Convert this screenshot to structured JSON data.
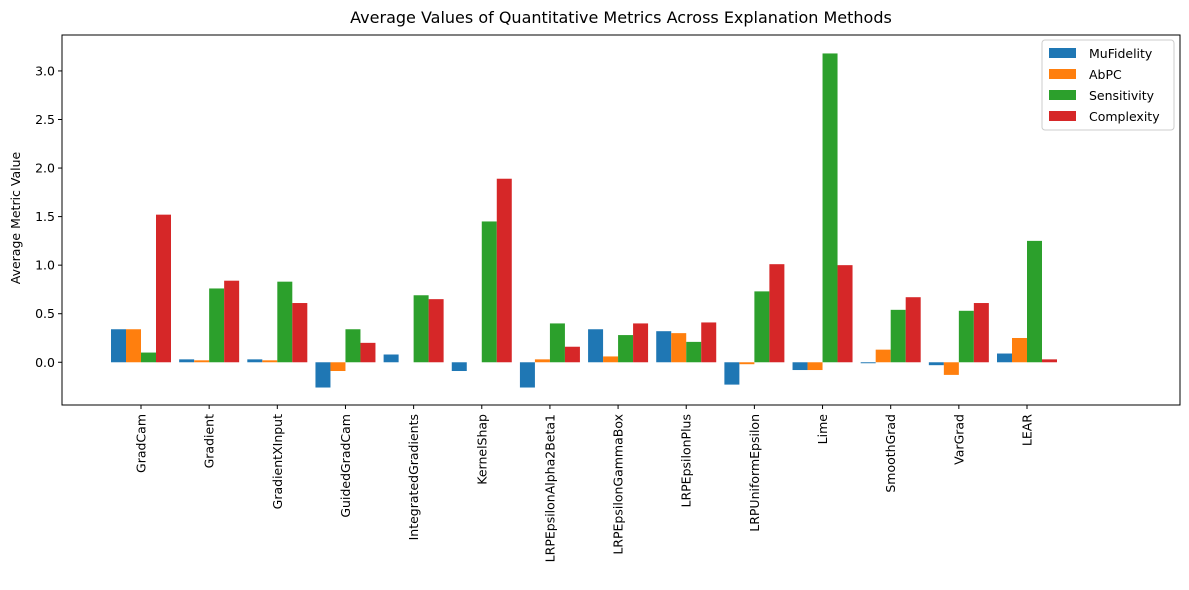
{
  "chart_data": {
    "type": "bar",
    "title": "Average Values of Quantitative Metrics Across Explanation Methods",
    "xlabel": "",
    "ylabel": "Average Metric Value",
    "ylim": [
      -0.44,
      3.37
    ],
    "yticks": [
      0.0,
      0.5,
      1.0,
      1.5,
      2.0,
      2.5,
      3.0
    ],
    "ytick_labels": [
      "0.0",
      "0.5",
      "1.0",
      "1.5",
      "2.0",
      "2.5",
      "3.0"
    ],
    "grid": false,
    "legend_position": "top-right",
    "categories": [
      "GradCam",
      "Gradient",
      "GradientXInput",
      "GuidedGradCam",
      "IntegratedGradients",
      "KernelShap",
      "LRPEpsilonAlpha2Beta1",
      "LRPEpsilonGammaBox",
      "LRPEpsilonPlus",
      "LRPUniformEpsilon",
      "Lime",
      "SmoothGrad",
      "VarGrad",
      "LEAR"
    ],
    "series": [
      {
        "name": "MuFidelity",
        "color": "#1f77b4",
        "values": [
          0.34,
          0.03,
          0.03,
          -0.26,
          0.08,
          -0.09,
          -0.26,
          0.34,
          0.32,
          -0.23,
          -0.08,
          -0.01,
          -0.03,
          0.09
        ]
      },
      {
        "name": "AbPC",
        "color": "#ff7f0e",
        "values": [
          0.34,
          0.02,
          0.02,
          -0.09,
          0.0,
          0.0,
          0.03,
          0.06,
          0.3,
          -0.02,
          -0.08,
          0.13,
          -0.13,
          0.25
        ]
      },
      {
        "name": "Sensitivity",
        "color": "#2ca02c",
        "values": [
          0.1,
          0.76,
          0.83,
          0.34,
          0.69,
          1.45,
          0.4,
          0.28,
          0.21,
          0.73,
          3.18,
          0.54,
          0.53,
          1.25
        ]
      },
      {
        "name": "Complexity",
        "color": "#d62728",
        "values": [
          1.52,
          0.84,
          0.61,
          0.2,
          0.65,
          1.89,
          0.16,
          0.4,
          0.41,
          1.01,
          1.0,
          0.67,
          0.61,
          0.03
        ]
      }
    ]
  }
}
